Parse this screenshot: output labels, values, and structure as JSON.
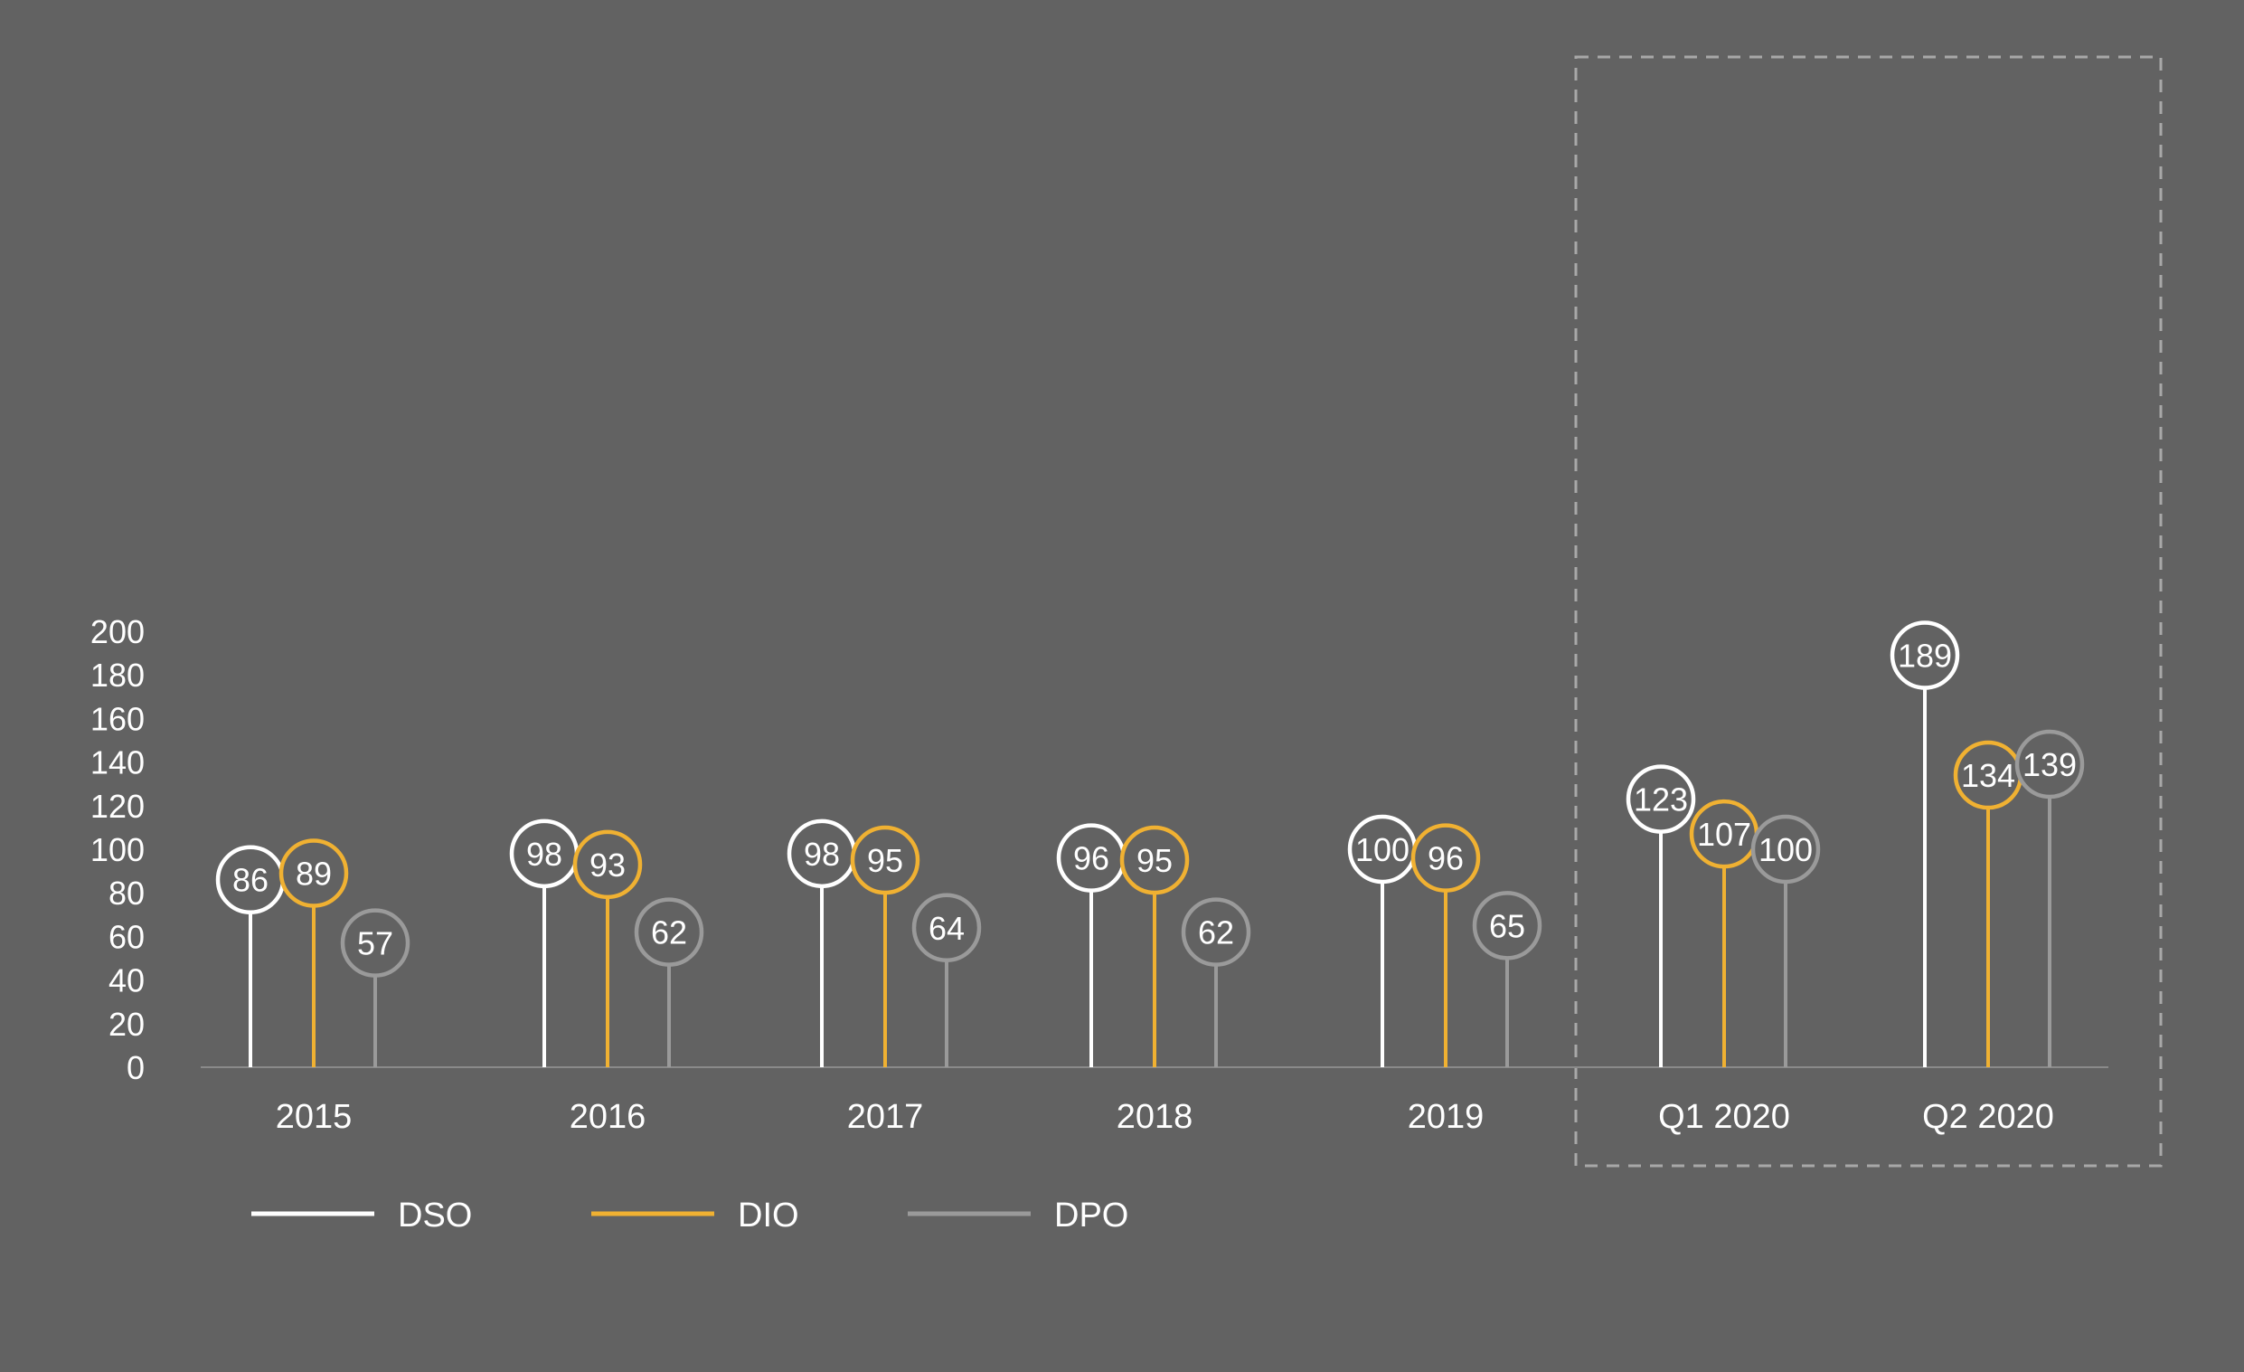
{
  "colors": {
    "background": "#626262",
    "DSO": "#ffffff",
    "DIO": "#f0b132",
    "DPO": "#9a9a9a",
    "axis": "#8a8a8a",
    "highlight_box": "#a8a8a8",
    "text": "#ffffff"
  },
  "chart_data": {
    "type": "lollipop",
    "title": "",
    "xlabel": "",
    "ylabel": "",
    "categories": [
      "2015",
      "2016",
      "2017",
      "2018",
      "2019",
      "Q1 2020",
      "Q2 2020"
    ],
    "y_ticks": [
      "0",
      "20",
      "40",
      "60",
      "80",
      "100",
      "120",
      "140",
      "160",
      "180",
      "200"
    ],
    "ylim": [
      0,
      200
    ],
    "grid": false,
    "legend_placement": "bottom-left",
    "highlighted_categories": [
      "Q1 2020",
      "Q2 2020"
    ],
    "series": [
      {
        "name": "DSO",
        "values": [
          86,
          98,
          98,
          96,
          100,
          123,
          189
        ]
      },
      {
        "name": "DIO",
        "values": [
          89,
          93,
          95,
          95,
          96,
          107,
          134
        ]
      },
      {
        "name": "DPO",
        "values": [
          57,
          62,
          64,
          62,
          65,
          100,
          139
        ]
      }
    ]
  }
}
